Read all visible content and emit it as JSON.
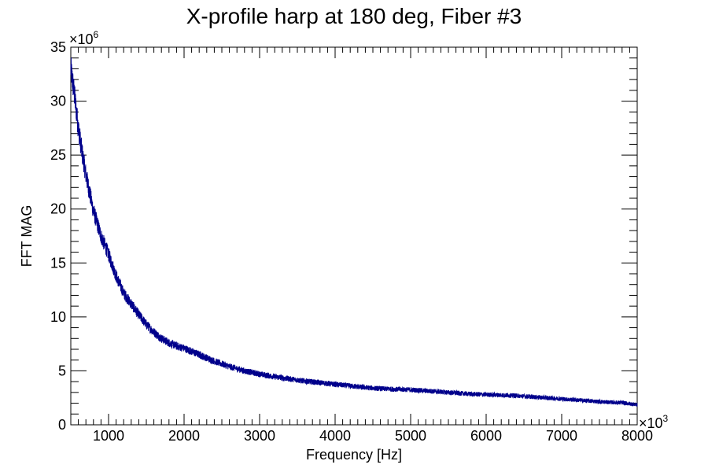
{
  "chart_data": {
    "type": "line",
    "title": "X-profile harp at 180 deg, Fiber #3",
    "xlabel": "Frequency [Hz]",
    "ylabel": "FFT MAG",
    "x_multiplier_base": "×10",
    "x_multiplier_exp": "3",
    "y_multiplier_base": "×10",
    "y_multiplier_exp": "6",
    "xlim": [
      500,
      8000
    ],
    "ylim": [
      0,
      35
    ],
    "x_ticks": [
      1000,
      2000,
      3000,
      4000,
      5000,
      6000,
      7000,
      8000
    ],
    "x_tick_labels": [
      "1000",
      "2000",
      "3000",
      "4000",
      "5000",
      "6000",
      "7000",
      "8000"
    ],
    "y_ticks": [
      0,
      5,
      10,
      15,
      20,
      25,
      30,
      35
    ],
    "y_tick_labels": [
      "0",
      "5",
      "10",
      "15",
      "20",
      "25",
      "30",
      "35"
    ],
    "grid": false,
    "legend": "none",
    "series_color": "#00008b",
    "series": [
      {
        "x": [
          500,
          550,
          600,
          650,
          700,
          750,
          800,
          900,
          1000,
          1100,
          1200,
          1300,
          1400,
          1500,
          1600,
          1700,
          1800,
          1900,
          2000,
          2200,
          2400,
          2600,
          2800,
          3000,
          3200,
          3400,
          3600,
          3800,
          4000,
          4200,
          4400,
          4600,
          4800,
          5000,
          5200,
          5400,
          5600,
          5800,
          6000,
          6200,
          6400,
          6600,
          6800,
          7000,
          7200,
          7400,
          7600,
          7800,
          8000
        ],
        "values": [
          33,
          30.5,
          27.5,
          25.2,
          23.2,
          21.5,
          19.8,
          17.5,
          15.8,
          13.8,
          12.2,
          11.2,
          10.2,
          9.3,
          8.6,
          8.0,
          7.6,
          7.3,
          7.1,
          6.5,
          5.9,
          5.4,
          5.0,
          4.7,
          4.45,
          4.25,
          4.05,
          3.9,
          3.75,
          3.6,
          3.45,
          3.35,
          3.3,
          3.25,
          3.15,
          3.05,
          2.95,
          2.85,
          2.8,
          2.75,
          2.7,
          2.6,
          2.5,
          2.4,
          2.3,
          2.2,
          2.1,
          2.05,
          1.85
        ]
      }
    ]
  }
}
